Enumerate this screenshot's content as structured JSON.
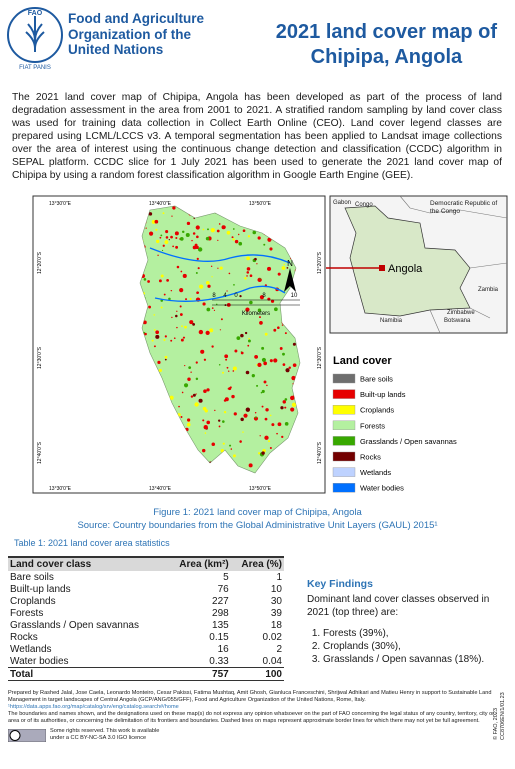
{
  "header": {
    "logo_text": "FAO",
    "logo_motto": "FIAT PANIS",
    "org_name": [
      "Food and Agriculture",
      "Organization of the",
      "United Nations"
    ],
    "title": [
      "2021 land cover map of",
      "Chipipa, Angola"
    ]
  },
  "intro": "The 2021 land cover map of Chipipa, Angola has been developed as part of the process of land degradation assessment in the area from 2001 to 2021. A stratified random sampling by land cover class was used for training data collection in Collect Earth Online (CEO). Land cover legend classes are prepared using LCML/LCCS v3. A temporal segmentation has been applied to Landsat image collections over the area of interest using the continuous change detection and classification (CCDC) algorithm in SEPAL platform. CCDC slice for 1 July 2021 has been used to generate the 2021 land cover map of Chipipa by using a random forest classification algorithm in Google Earth Engine (GEE).",
  "map": {
    "lon_labels": [
      "13°30'0\"E",
      "13°40'0\"E",
      "13°50'0\"E"
    ],
    "lat_labels": [
      "12°20'0\"S",
      "12°30'0\"S",
      "12°40'0\"S"
    ],
    "north": "N",
    "scale_labels": [
      "8",
      "4",
      "0",
      "8",
      "10"
    ],
    "scale_unit": "Kilometers",
    "inset_labels": {
      "gabon": "Gabon",
      "congo": "Congo",
      "drc": "Democratic Republic of the Congo",
      "angola": "Angola",
      "zambia": "Zambia",
      "namibia": "Namibia",
      "zimbabwe": "Zimbabwe",
      "botswana": "Botswana"
    },
    "legend_title": "Land cover",
    "legend": [
      {
        "label": "Bare soils",
        "color": "#6e6e6e"
      },
      {
        "label": "Built-up lands",
        "color": "#e60000"
      },
      {
        "label": "Croplands",
        "color": "#ffff00"
      },
      {
        "label": "Forests",
        "color": "#b4f0a0"
      },
      {
        "label": "Grasslands / Open savannas",
        "color": "#38a800"
      },
      {
        "label": "Rocks",
        "color": "#730000"
      },
      {
        "label": "Wetlands",
        "color": "#bed2ff"
      },
      {
        "label": "Water bodies",
        "color": "#0070ff"
      }
    ]
  },
  "caption": {
    "figure": "Figure 1: 2021 land cover map of Chipipa, Angola",
    "source": "Source: Country boundaries from the Global Administrative Unit Layers (GAUL) 2015¹"
  },
  "table": {
    "title": "Table 1: 2021 land cover area statistics",
    "headers": [
      "Land cover class",
      "Area (km²)",
      "Area (%)"
    ],
    "rows": [
      [
        "Bare soils",
        5,
        1
      ],
      [
        "Built-up lands",
        76,
        10
      ],
      [
        "Croplands",
        227,
        30
      ],
      [
        "Forests",
        298,
        39
      ],
      [
        "Grasslands / Open savannas",
        135,
        18
      ],
      [
        "Rocks",
        0.15,
        0.02
      ],
      [
        "Wetlands",
        16,
        2
      ],
      [
        "Water bodies",
        0.33,
        0.04
      ]
    ],
    "total": [
      "Total",
      757,
      100
    ]
  },
  "key_findings": {
    "title": "Key Findings",
    "intro": "Dominant land cover classes observed in 2021 (top three) are:",
    "items": [
      "Forests (39%),",
      "Croplands (30%),",
      "Grasslands / Open savannas (18%)."
    ]
  },
  "footer": {
    "credits": "Prepared by Rashed Jalal, Jose Caela, Leonardo Monteiro, Cesar Pakissi, Fatima Mushtaq, Amit Ghosh, Gianluca Franceschini, Shrijwal Adhikari and Matieu Henry in support to Sustainable Land Management in target landscapes of Central Angola (GCP/ANG/055/GFF), Food and Agriculture Organization of the United Nations, Rome, Italy.",
    "link": "¹https://data.apps.fao.org/map/catalog/srv/eng/catalog.search#/home",
    "disclaimer": "The boundaries and names shown, and the designations used on these map(s) do not express any opinion whatsoever on the part of FAO concerning the legal status of any country, territory, city or area or of its authorities, or concerning the delimitation of its frontiers and boundaries. Dashed lines on maps represent approximate border lines for which there may not yet be full agreement.",
    "rights": "Some rights reserved. This work is available under a CC BY-NC-SA 3.0 IGO licence",
    "copyright": "© FAO, 2023",
    "code": "CC8706EN/1/01.23"
  }
}
